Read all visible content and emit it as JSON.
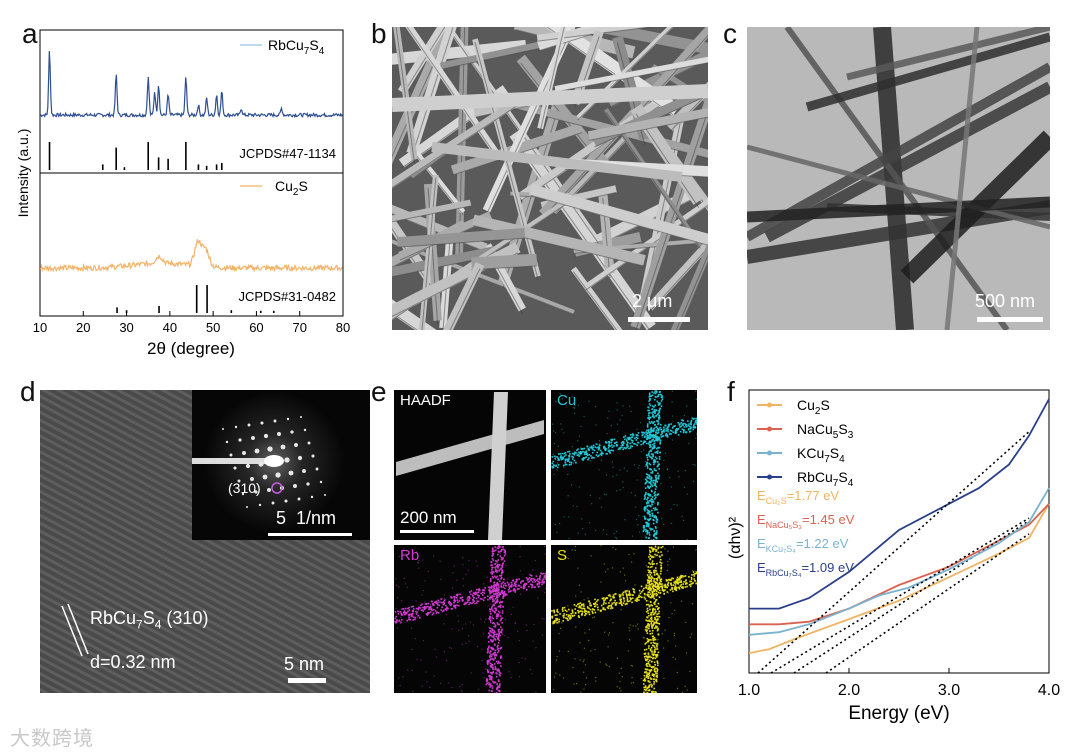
{
  "panel_labels": {
    "a": "a",
    "b": "b",
    "c": "c",
    "d": "d",
    "e": "e",
    "f": "f"
  },
  "panel_a": {
    "chart_data": {
      "type": "line",
      "xlabel": "2θ (degree)",
      "ylabel": "Intensity (a.u.)",
      "xlim": [
        10,
        80
      ],
      "xticks": [
        "10",
        "20",
        "30",
        "40",
        "50",
        "60",
        "70",
        "80"
      ],
      "series": [
        {
          "name": "RbCu7S4",
          "color": "#2e4f92",
          "peaks": [
            [
              12.2,
              0.95
            ],
            [
              27.6,
              0.6
            ],
            [
              35.0,
              0.55
            ],
            [
              36.5,
              0.35
            ],
            [
              37.4,
              0.45
            ],
            [
              39.6,
              0.3
            ],
            [
              43.7,
              0.55
            ],
            [
              46.6,
              0.15
            ],
            [
              48.5,
              0.25
            ],
            [
              50.8,
              0.3
            ],
            [
              52.0,
              0.35
            ],
            [
              56.5,
              0.1
            ],
            [
              65.8,
              0.1
            ]
          ]
        },
        {
          "name": "Cu2S",
          "color": "#f2b36b",
          "peaks": [
            [
              37.5,
              0.12
            ],
            [
              46.5,
              0.4
            ],
            [
              48.3,
              0.28
            ]
          ]
        }
      ],
      "references": [
        {
          "name": "JCPDS#47-1134",
          "lines": [
            [
              12.2,
              1.0
            ],
            [
              24.5,
              0.2
            ],
            [
              27.6,
              0.8
            ],
            [
              29.5,
              0.1
            ],
            [
              35.0,
              1.0
            ],
            [
              37.4,
              0.45
            ],
            [
              39.6,
              0.4
            ],
            [
              43.7,
              1.0
            ],
            [
              46.6,
              0.2
            ],
            [
              48.5,
              0.15
            ],
            [
              50.8,
              0.2
            ],
            [
              52.0,
              0.25
            ]
          ]
        },
        {
          "name": "JCPDS#31-0482",
          "lines": [
            [
              27.8,
              0.2
            ],
            [
              30.0,
              0.1
            ],
            [
              37.5,
              0.25
            ],
            [
              46.2,
              1.0
            ],
            [
              48.6,
              1.0
            ],
            [
              54.2,
              0.1
            ],
            [
              61.0,
              0.08
            ],
            [
              64.0,
              0.08
            ]
          ]
        }
      ],
      "legend": [
        {
          "base": "RbCu",
          "s1": "7",
          "mid": "S",
          "s2": "4",
          "color": "#a8cfe8"
        },
        {
          "base": "Cu",
          "s1": "2",
          "mid": "S",
          "s2": "",
          "color": "#f2c47f"
        }
      ]
    }
  },
  "panel_b": {
    "scale": "2 μm"
  },
  "panel_c": {
    "scale": "500 nm"
  },
  "panel_d": {
    "inset_label": "(310)",
    "inset_scale": "5  1/nm",
    "lattice": {
      "base": "RbCu",
      "s1": "7",
      "mid": "S",
      "s2": "4",
      "rest": " (310)"
    },
    "spacing": "d=0.32 nm",
    "scale": "5 nm"
  },
  "panel_e": {
    "labels": {
      "haadf": "HAADF",
      "cu": "Cu",
      "rb": "Rb",
      "s": "S"
    },
    "colors": {
      "cu": "#23c8d6",
      "rb": "#d23ad2",
      "s": "#e5e01a"
    },
    "scale": "200 nm"
  },
  "panel_f": {
    "chart_data": {
      "type": "line",
      "xlabel": "Energy (eV)",
      "ylabel": "(αhν)²",
      "xlim": [
        1.0,
        4.0
      ],
      "xticks": [
        "1.0",
        "2.0",
        "3.0",
        "4.0"
      ],
      "series": [
        {
          "name": "Cu2S",
          "color": "#f0b463",
          "bandgap": 1.77,
          "points": [
            [
              1.0,
              0.03
            ],
            [
              1.2,
              0.045
            ],
            [
              1.5,
              0.09
            ],
            [
              2.0,
              0.16
            ],
            [
              2.5,
              0.23
            ],
            [
              3.0,
              0.32
            ],
            [
              3.5,
              0.41
            ],
            [
              3.8,
              0.47
            ],
            [
              4.0,
              0.6
            ]
          ]
        },
        {
          "name": "NaCu5S3",
          "color": "#d9634f",
          "bandgap": 1.45,
          "points": [
            [
              1.0,
              0.14
            ],
            [
              1.3,
              0.14
            ],
            [
              1.6,
              0.15
            ],
            [
              2.0,
              0.2
            ],
            [
              2.5,
              0.29
            ],
            [
              3.0,
              0.36
            ],
            [
              3.5,
              0.46
            ],
            [
              3.8,
              0.52
            ],
            [
              4.0,
              0.6
            ]
          ]
        },
        {
          "name": "KCu7S4",
          "color": "#7ab3cf",
          "bandgap": 1.22,
          "points": [
            [
              1.0,
              0.1
            ],
            [
              1.3,
              0.11
            ],
            [
              1.6,
              0.14
            ],
            [
              2.0,
              0.2
            ],
            [
              2.3,
              0.25
            ],
            [
              2.6,
              0.28
            ],
            [
              3.0,
              0.35
            ],
            [
              3.5,
              0.45
            ],
            [
              3.8,
              0.53
            ],
            [
              4.0,
              0.66
            ]
          ]
        },
        {
          "name": "RbCu7S4",
          "color": "#2a3f8a",
          "bandgap": 1.09,
          "points": [
            [
              1.0,
              0.2
            ],
            [
              1.3,
              0.2
            ],
            [
              1.6,
              0.24
            ],
            [
              2.0,
              0.34
            ],
            [
              2.5,
              0.5
            ],
            [
              3.0,
              0.6
            ],
            [
              3.3,
              0.66
            ],
            [
              3.6,
              0.75
            ],
            [
              3.8,
              0.86
            ],
            [
              4.0,
              1.0
            ]
          ]
        }
      ],
      "legend": [
        {
          "base": "Cu",
          "s1": "2",
          "mid": "S",
          "s2": "",
          "color": "#f0b463"
        },
        {
          "base": "NaCu",
          "s1": "5",
          "mid": "S",
          "s2": "3",
          "color": "#d9634f"
        },
        {
          "base": "KCu",
          "s1": "7",
          "mid": "S",
          "s2": "4",
          "color": "#7ab3cf"
        },
        {
          "base": "RbCu",
          "s1": "7",
          "mid": "S",
          "s2": "4",
          "color": "#2a3f8a"
        }
      ],
      "annotations": [
        {
          "sub": "Cu₂S",
          "value": "=1.77 eV",
          "color": "#f0b463"
        },
        {
          "sub": "NaCu₅S₃",
          "value": "=1.45 eV",
          "color": "#d9634f"
        },
        {
          "sub": "KCu₇S₄",
          "value": "=1.22 eV",
          "color": "#7ab3cf"
        },
        {
          "sub": "RbCu₇S₄",
          "value": "=1.09 eV",
          "color": "#2a3f8a"
        }
      ]
    }
  },
  "watermark": "大数跨境"
}
